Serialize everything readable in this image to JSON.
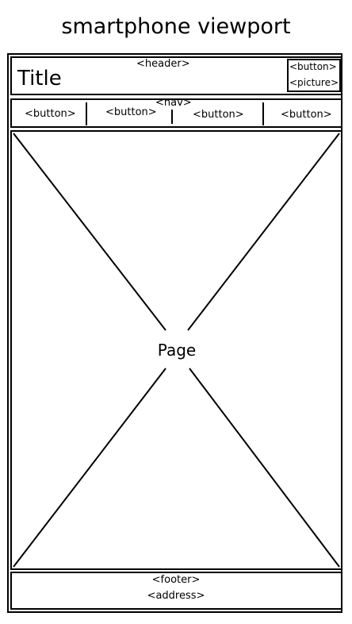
{
  "caption": "smartphone viewport",
  "header": {
    "tag": "<header>",
    "title": "Title",
    "button_tag": "<button>",
    "picture_tag": "<picture>"
  },
  "nav": {
    "tag": "<nav>",
    "buttons": [
      "<button>",
      "<button>",
      "<button>",
      "<button>"
    ]
  },
  "page": {
    "label": "Page"
  },
  "footer": {
    "tag": "<footer>",
    "address_tag": "<address>"
  }
}
